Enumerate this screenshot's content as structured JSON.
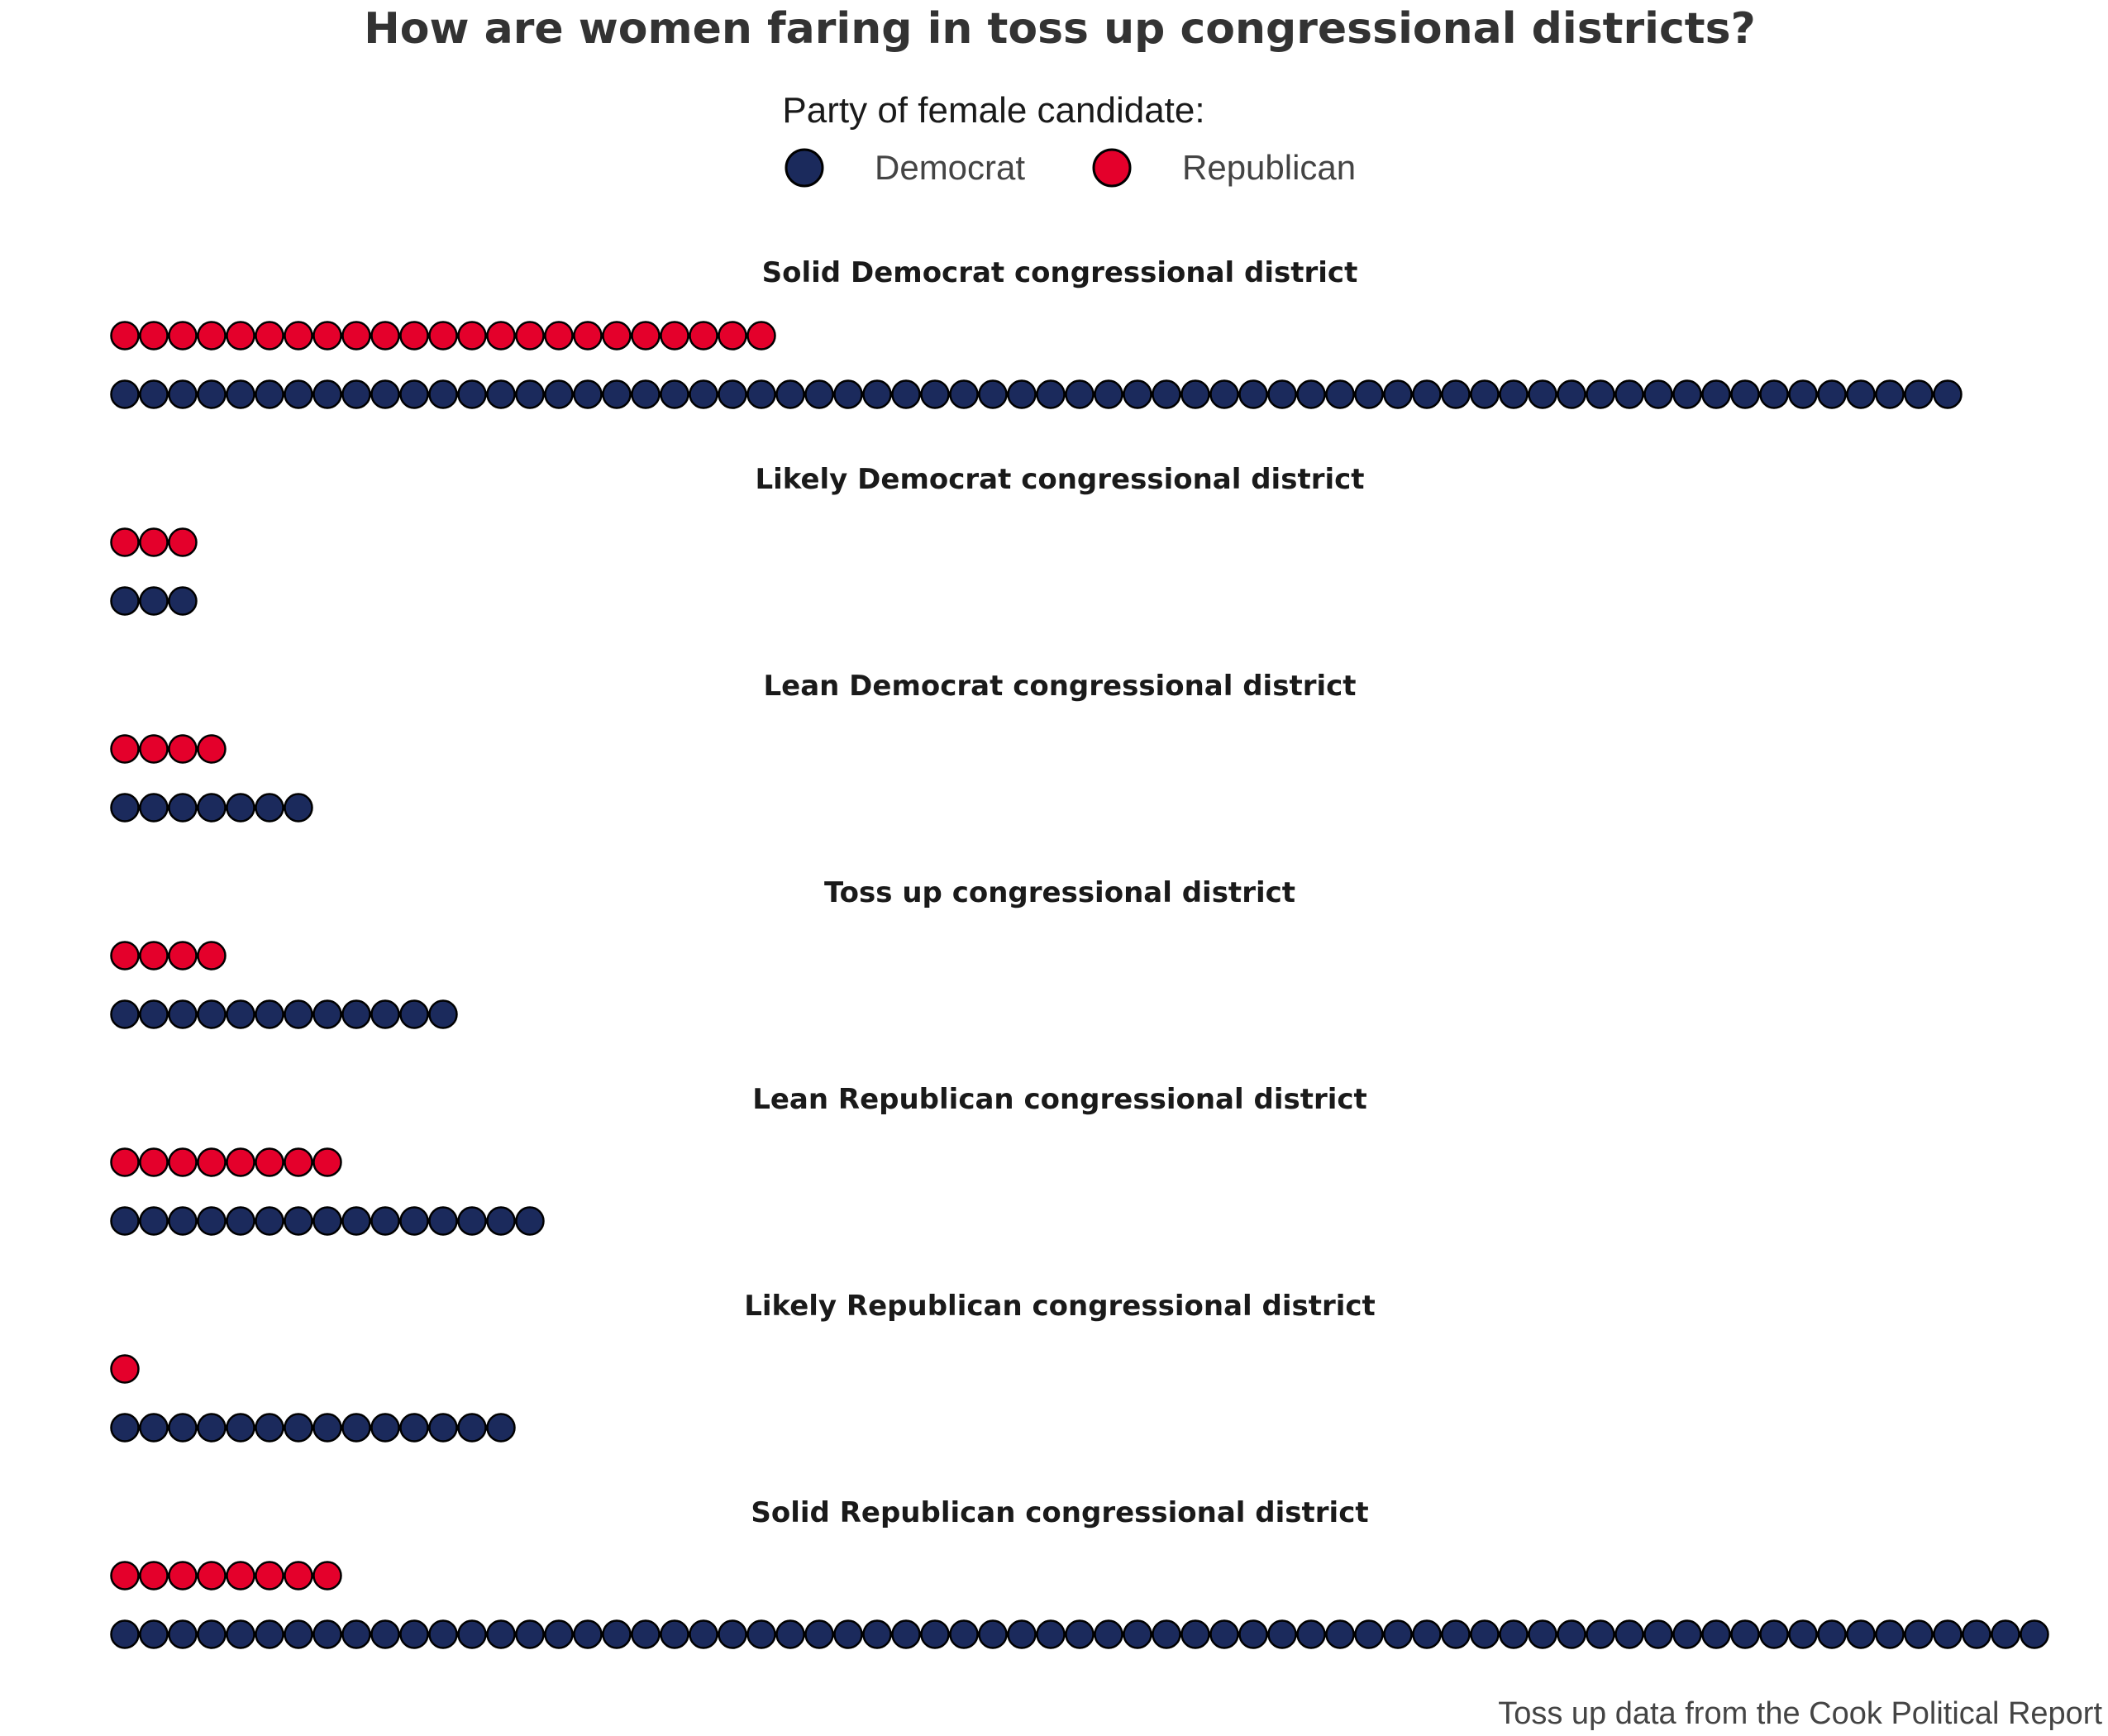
{
  "chart_data": {
    "type": "dot-plot",
    "title": "How are women faring in toss up congressional districts?",
    "legend": {
      "title": "Party of female candidate:",
      "placement": "top-center",
      "items": [
        {
          "label": "Democrat",
          "color": "#1b2a5c"
        },
        {
          "label": "Republican",
          "color": "#e4002b"
        }
      ]
    },
    "categories": [
      "Solid Democrat congressional district",
      "Likely Democrat congressional district",
      "Lean Democrat congressional district",
      "Toss up congressional district",
      "Lean Republican congressional district",
      "Likely Republican congressional district",
      "Solid Republican congressional district"
    ],
    "series": [
      {
        "name": "Republican",
        "color": "#e4002b",
        "values": [
          23,
          3,
          4,
          4,
          8,
          1,
          8
        ]
      },
      {
        "name": "Democrat",
        "color": "#1b2a5c",
        "values": [
          64,
          3,
          7,
          12,
          15,
          14,
          67
        ]
      }
    ],
    "caption": "Toss up data from the Cook Political Report",
    "grid": false
  }
}
